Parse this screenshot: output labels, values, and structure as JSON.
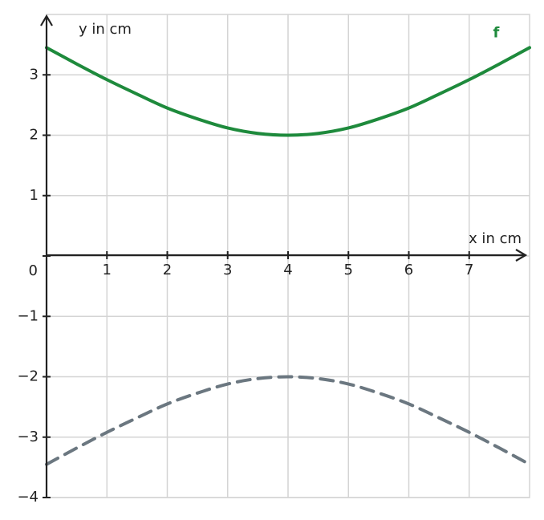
{
  "chart_data": {
    "type": "line",
    "x_label": "x in cm",
    "y_label": "y in cm",
    "x": [
      0,
      0.5,
      1,
      1.5,
      2,
      2.5,
      3,
      3.5,
      4,
      4.5,
      5,
      5.5,
      6,
      6.5,
      7,
      7.5,
      8
    ],
    "series": [
      {
        "name": "f",
        "color": "#1e8a3c",
        "dashed": false,
        "values": [
          3.45,
          3.18,
          2.92,
          2.68,
          2.45,
          2.27,
          2.12,
          2.03,
          2,
          2.03,
          2.12,
          2.27,
          2.45,
          2.68,
          2.92,
          3.18,
          3.45
        ]
      },
      {
        "color": "#6b7780",
        "dashed": true,
        "values": [
          -3.45,
          -3.18,
          -2.92,
          -2.68,
          -2.45,
          -2.27,
          -2.12,
          -2.03,
          -2,
          -2.03,
          -2.12,
          -2.27,
          -2.45,
          -2.68,
          -2.92,
          -3.18,
          -3.45
        ]
      }
    ],
    "xlim": [
      0,
      8
    ],
    "ylim": [
      -4,
      4
    ],
    "xticks": [
      1,
      2,
      3,
      4,
      5,
      6,
      7
    ],
    "yticks": [
      {
        "value": -4,
        "label": "−4"
      },
      {
        "value": -3,
        "label": "−3"
      },
      {
        "value": -2,
        "label": "−2"
      },
      {
        "value": -1,
        "label": "−1"
      },
      0,
      1,
      2,
      3
    ],
    "grid": true
  }
}
